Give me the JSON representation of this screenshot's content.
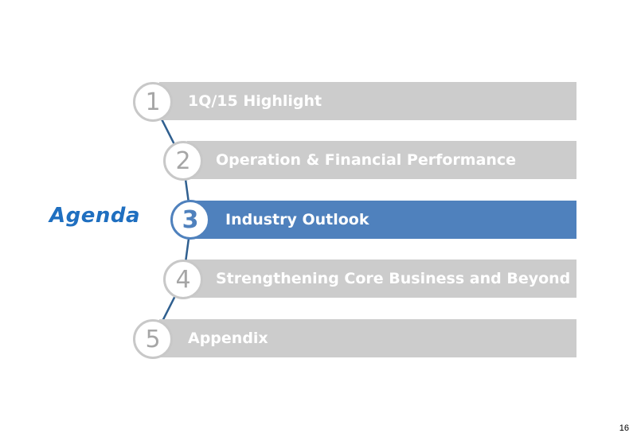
{
  "slide": {
    "title": "Agenda",
    "page_number": "16",
    "items": [
      {
        "number": "1",
        "label": "1Q/15 Highlight",
        "active": false
      },
      {
        "number": "2",
        "label": "Operation & Financial Performance",
        "active": false
      },
      {
        "number": "3",
        "label": "Industry Outlook",
        "active": true
      },
      {
        "number": "4",
        "label": "Strengthening Core Business and Beyond",
        "active": false
      },
      {
        "number": "5",
        "label": "Appendix",
        "active": false
      }
    ],
    "colors": {
      "accent": "#4f81bd",
      "title": "#1f6fc0",
      "inactive_bar": "#cccccc",
      "circle_border": "#c8c8c8"
    }
  }
}
